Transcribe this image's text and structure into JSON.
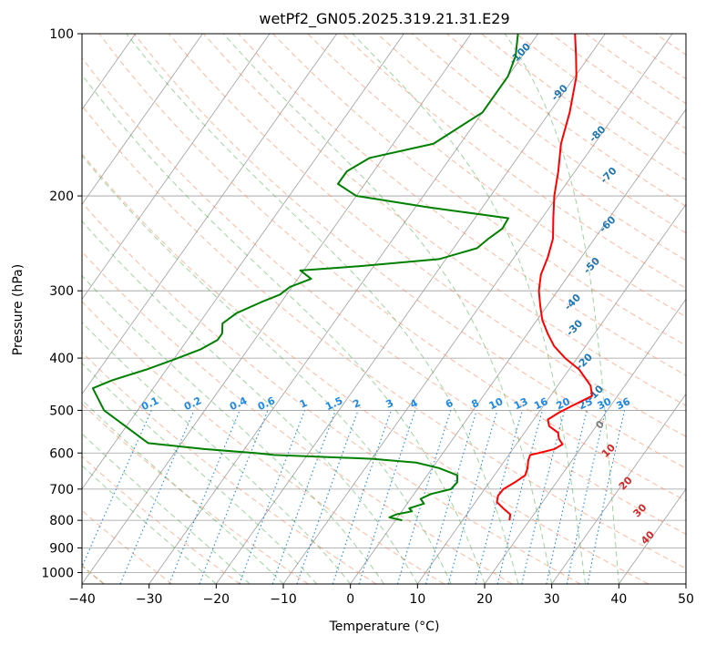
{
  "chart_data": {
    "type": "line",
    "subtype": "skew-t",
    "title": "wetPf2_GN05.2025.319.21.31.E29",
    "xlabel": "Temperature (°C)",
    "ylabel": "Pressure (hPa)",
    "xlim": [
      -40,
      50
    ],
    "ylim": [
      1050,
      100
    ],
    "y_scale": "log",
    "grid": true,
    "x_ticks": [
      -40,
      -30,
      -20,
      -10,
      0,
      10,
      20,
      30,
      40,
      50
    ],
    "x_tick_labels": [
      "−40",
      "−30",
      "−20",
      "−10",
      "0",
      "10",
      "20",
      "30",
      "40",
      "50"
    ],
    "y_ticks": [
      100,
      200,
      300,
      400,
      500,
      600,
      700,
      800,
      900,
      1000
    ],
    "y_tick_labels": [
      "100",
      "200",
      "300",
      "400",
      "500",
      "600",
      "700",
      "800",
      "900",
      "1000"
    ],
    "series": [
      {
        "color": "#ff0000",
        "points": [
          {
            "p": 800,
            "t": 17.0
          },
          {
            "p": 780,
            "t": 16.5
          },
          {
            "p": 760,
            "t": 14.8
          },
          {
            "p": 740,
            "t": 13.2
          },
          {
            "p": 720,
            "t": 12.7
          },
          {
            "p": 700,
            "t": 12.8
          },
          {
            "p": 680,
            "t": 13.8
          },
          {
            "p": 660,
            "t": 14.6
          },
          {
            "p": 640,
            "t": 14.2
          },
          {
            "p": 620,
            "t": 13.5
          },
          {
            "p": 605,
            "t": 13.2
          },
          {
            "p": 600,
            "t": 14.3
          },
          {
            "p": 590,
            "t": 16.2
          },
          {
            "p": 578,
            "t": 16.9
          },
          {
            "p": 565,
            "t": 15.8
          },
          {
            "p": 550,
            "t": 15.0
          },
          {
            "p": 535,
            "t": 13.0
          },
          {
            "p": 520,
            "t": 12.1
          },
          {
            "p": 505,
            "t": 13.0
          },
          {
            "p": 490,
            "t": 14.3
          },
          {
            "p": 470,
            "t": 16.2
          },
          {
            "p": 450,
            "t": 14.9
          },
          {
            "p": 420,
            "t": 11.5
          },
          {
            "p": 400,
            "t": 8.2
          },
          {
            "p": 380,
            "t": 5.3
          },
          {
            "p": 360,
            "t": 3.0
          },
          {
            "p": 340,
            "t": 0.8
          },
          {
            "p": 320,
            "t": -1.0
          },
          {
            "p": 300,
            "t": -2.8
          },
          {
            "p": 280,
            "t": -4.2
          },
          {
            "p": 260,
            "t": -5.0
          },
          {
            "p": 240,
            "t": -6.2
          },
          {
            "p": 220,
            "t": -8.3
          },
          {
            "p": 200,
            "t": -10.5
          },
          {
            "p": 180,
            "t": -12.5
          },
          {
            "p": 160,
            "t": -15.0
          },
          {
            "p": 140,
            "t": -17.0
          },
          {
            "p": 120,
            "t": -19.8
          },
          {
            "p": 110,
            "t": -22.0
          },
          {
            "p": 100,
            "t": -24.5
          }
        ]
      },
      {
        "color": "#008000",
        "points": [
          {
            "p": 800,
            "t": 1.0
          },
          {
            "p": 790,
            "t": -1.2
          },
          {
            "p": 780,
            "t": -0.5
          },
          {
            "p": 770,
            "t": 1.5
          },
          {
            "p": 760,
            "t": 0.8
          },
          {
            "p": 745,
            "t": 2.5
          },
          {
            "p": 730,
            "t": 1.5
          },
          {
            "p": 715,
            "t": 2.5
          },
          {
            "p": 700,
            "t": 5.0
          },
          {
            "p": 680,
            "t": 5.2
          },
          {
            "p": 660,
            "t": 4.5
          },
          {
            "p": 640,
            "t": 1.0
          },
          {
            "p": 625,
            "t": -3.0
          },
          {
            "p": 615,
            "t": -10.0
          },
          {
            "p": 605,
            "t": -25.0
          },
          {
            "p": 600,
            "t": -28.0
          },
          {
            "p": 590,
            "t": -36.0
          },
          {
            "p": 575,
            "t": -45.0
          },
          {
            "p": 500,
            "t": -55.0
          },
          {
            "p": 455,
            "t": -59.0
          },
          {
            "p": 440,
            "t": -57.0
          },
          {
            "p": 420,
            "t": -53.0
          },
          {
            "p": 400,
            "t": -49.5
          },
          {
            "p": 385,
            "t": -47.0
          },
          {
            "p": 370,
            "t": -45.5
          },
          {
            "p": 360,
            "t": -45.5
          },
          {
            "p": 345,
            "t": -46.5
          },
          {
            "p": 330,
            "t": -45.5
          },
          {
            "p": 315,
            "t": -43.0
          },
          {
            "p": 305,
            "t": -41.0
          },
          {
            "p": 295,
            "t": -40.3
          },
          {
            "p": 285,
            "t": -38.0
          },
          {
            "p": 275,
            "t": -40.5
          },
          {
            "p": 270,
            "t": -32.0
          },
          {
            "p": 262,
            "t": -21.0
          },
          {
            "p": 250,
            "t": -16.5
          },
          {
            "p": 240,
            "t": -15.8
          },
          {
            "p": 230,
            "t": -14.8
          },
          {
            "p": 220,
            "t": -15.0
          },
          {
            "p": 210,
            "t": -28.0
          },
          {
            "p": 200,
            "t": -40.0
          },
          {
            "p": 190,
            "t": -44.0
          },
          {
            "p": 180,
            "t": -44.0
          },
          {
            "p": 170,
            "t": -42.0
          },
          {
            "p": 160,
            "t": -34.0
          },
          {
            "p": 140,
            "t": -30.0
          },
          {
            "p": 120,
            "t": -30.0
          },
          {
            "p": 110,
            "t": -31.0
          },
          {
            "p": 100,
            "t": -33.0
          }
        ]
      }
    ],
    "dry_adiabat_labels": [
      "-100",
      "-90",
      "-80",
      "-70",
      "-60",
      "-50",
      "-40",
      "-30",
      "-20",
      "-10",
      "0",
      "10",
      "20",
      "30",
      "40"
    ],
    "mixing_ratio_labels": [
      "0.1",
      "0.2",
      "0.4",
      "0.6",
      "1",
      "1.5",
      "2",
      "3",
      "4",
      "6",
      "8",
      "10",
      "13",
      "16",
      "20",
      "25",
      "30",
      "36"
    ],
    "colors": {
      "temperature": "#ff0000",
      "dewpoint": "#008000",
      "dry_adiabat": "#ff7f50",
      "moist_adiabat": "#2ca02c",
      "mixing_ratio": "#1e88e5",
      "isotherm": "#808080",
      "isobar": "#808080",
      "lcl_label_blue": "#1f77b4",
      "lcl_label_red": "#d62728",
      "lcl_label_gray": "#7f7f7f"
    }
  }
}
